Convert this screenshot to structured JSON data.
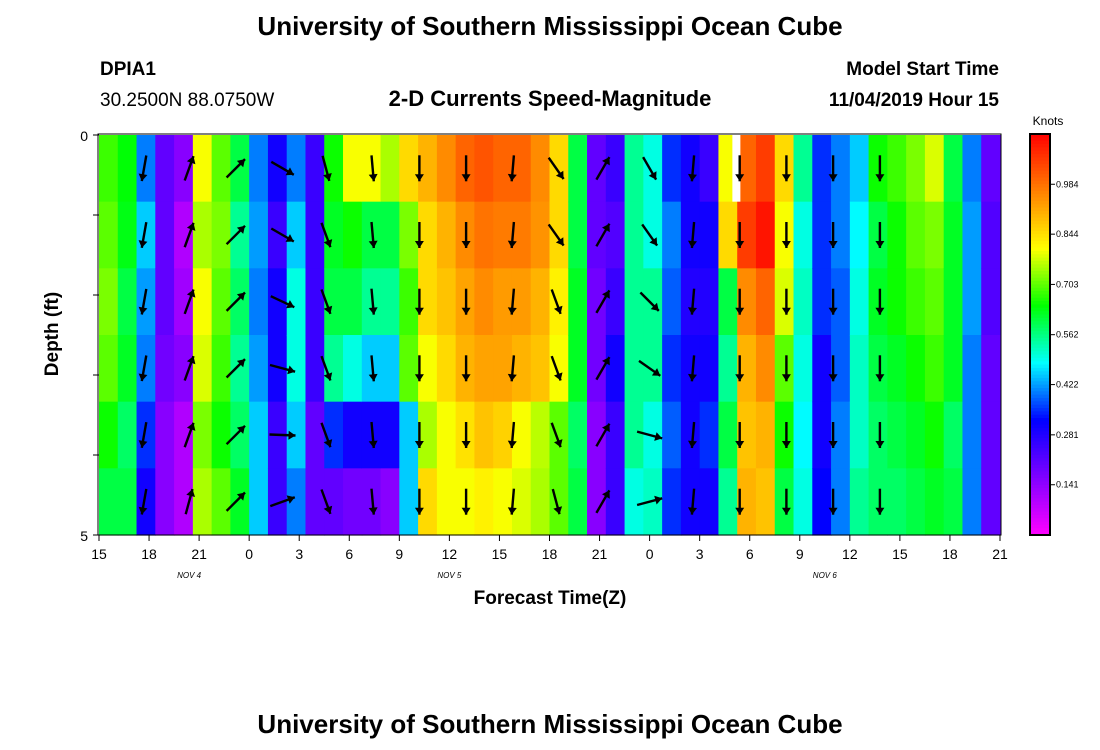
{
  "header": {
    "title": "University of Southern Mississippi Ocean Cube",
    "station_id": "DPIA1",
    "coordinates": "30.2500N 88.0750W",
    "plot_title": "2-D Currents Speed-Magnitude",
    "model_start_label": "Model Start Time",
    "model_start_value": "11/04/2019 Hour 15"
  },
  "footer": {
    "title": "University of Southern Mississippi Ocean Cube"
  },
  "chart_data": {
    "type": "heatmap",
    "xlabel": "Forecast Time(Z)",
    "ylabel": "Depth (ft)",
    "x_tick_labels": [
      "15",
      "18",
      "21",
      "0",
      "3",
      "6",
      "9",
      "12",
      "15",
      "18",
      "21",
      "0",
      "3",
      "6",
      "9",
      "12",
      "15",
      "18",
      "21"
    ],
    "date_labels": [
      {
        "text": "NOV 4",
        "tick_index": 1.8
      },
      {
        "text": "NOV 5",
        "tick_index": 7.0
      },
      {
        "text": "NOV 6",
        "tick_index": 14.5
      }
    ],
    "y_tick_labels": [
      "0",
      "5"
    ],
    "y_range": [
      0,
      5
    ],
    "colorbar": {
      "unit": "Knots",
      "tick_labels": [
        "0.984",
        "0.844",
        "0.703",
        "0.562",
        "0.422",
        "0.281",
        "0.141"
      ],
      "range": [
        0,
        1.125
      ],
      "colors": [
        "#ff00ff",
        "#8000ff",
        "#0000ff",
        "#00ffff",
        "#00ff00",
        "#ffff00",
        "#ff8000",
        "#ff0000"
      ]
    },
    "speed_columns": [
      [
        0.68,
        0.7,
        0.72,
        0.7,
        0.65,
        0.6
      ],
      [
        0.64,
        0.63,
        0.6,
        0.62,
        0.58,
        0.6
      ],
      [
        0.4,
        0.45,
        0.42,
        0.4,
        0.35,
        0.3
      ],
      [
        0.2,
        0.2,
        0.2,
        0.18,
        0.15,
        0.15
      ],
      [
        0.15,
        0.1,
        0.12,
        0.15,
        0.1,
        0.1
      ],
      [
        0.8,
        0.75,
        0.8,
        0.78,
        0.72,
        0.75
      ],
      [
        0.7,
        0.72,
        0.7,
        0.68,
        0.65,
        0.7
      ],
      [
        0.6,
        0.55,
        0.58,
        0.55,
        0.58,
        0.62
      ],
      [
        0.4,
        0.42,
        0.4,
        0.42,
        0.45,
        0.45
      ],
      [
        0.3,
        0.25,
        0.3,
        0.3,
        0.25,
        0.25
      ],
      [
        0.4,
        0.45,
        0.5,
        0.5,
        0.45,
        0.4
      ],
      [
        0.25,
        0.25,
        0.25,
        0.25,
        0.2,
        0.2
      ],
      [
        0.65,
        0.62,
        0.6,
        0.55,
        0.35,
        0.2
      ],
      [
        0.8,
        0.65,
        0.6,
        0.5,
        0.3,
        0.18
      ],
      [
        0.8,
        0.6,
        0.55,
        0.45,
        0.3,
        0.18
      ],
      [
        0.75,
        0.6,
        0.55,
        0.45,
        0.3,
        0.15
      ],
      [
        0.85,
        0.72,
        0.68,
        0.7,
        0.45,
        0.45
      ],
      [
        0.9,
        0.85,
        0.85,
        0.8,
        0.75,
        0.85
      ],
      [
        0.95,
        0.9,
        0.88,
        0.85,
        0.8,
        0.8
      ],
      [
        1.0,
        0.95,
        0.92,
        0.9,
        0.84,
        0.8
      ],
      [
        1.02,
        0.98,
        0.95,
        0.92,
        0.88,
        0.82
      ],
      [
        1.0,
        0.97,
        0.93,
        0.92,
        0.86,
        0.8
      ],
      [
        1.0,
        0.97,
        0.93,
        0.9,
        0.8,
        0.78
      ],
      [
        0.95,
        0.94,
        0.9,
        0.88,
        0.76,
        0.75
      ],
      [
        0.85,
        0.85,
        0.82,
        0.8,
        0.7,
        0.7
      ],
      [
        0.6,
        0.6,
        0.62,
        0.62,
        0.58,
        0.6
      ],
      [
        0.2,
        0.2,
        0.18,
        0.18,
        0.15,
        0.15
      ],
      [
        0.25,
        0.22,
        0.25,
        0.3,
        0.25,
        0.25
      ],
      [
        0.55,
        0.55,
        0.55,
        0.55,
        0.55,
        0.5
      ],
      [
        0.5,
        0.5,
        0.55,
        0.55,
        0.5,
        0.52
      ],
      [
        0.35,
        0.4,
        0.38,
        0.35,
        0.38,
        0.35
      ],
      [
        0.3,
        0.3,
        0.28,
        0.3,
        0.3,
        0.3
      ],
      [
        0.25,
        0.3,
        0.28,
        0.3,
        0.35,
        0.3
      ],
      [
        0.8,
        0.85,
        0.6,
        0.55,
        0.6,
        0.55
      ],
      [
        1.0,
        1.05,
        0.95,
        0.9,
        0.88,
        0.9
      ],
      [
        1.05,
        1.1,
        1.0,
        0.95,
        0.9,
        0.88
      ],
      [
        0.85,
        0.8,
        0.78,
        0.7,
        0.65,
        0.6
      ],
      [
        0.55,
        0.5,
        0.52,
        0.5,
        0.48,
        0.5
      ],
      [
        0.35,
        0.35,
        0.35,
        0.3,
        0.3,
        0.32
      ],
      [
        0.4,
        0.4,
        0.38,
        0.38,
        0.4,
        0.4
      ],
      [
        0.45,
        0.48,
        0.5,
        0.52,
        0.52,
        0.55
      ],
      [
        0.65,
        0.6,
        0.62,
        0.6,
        0.58,
        0.58
      ],
      [
        0.68,
        0.65,
        0.65,
        0.62,
        0.6,
        0.58
      ],
      [
        0.72,
        0.7,
        0.68,
        0.65,
        0.62,
        0.6
      ],
      [
        0.78,
        0.72,
        0.7,
        0.68,
        0.65,
        0.62
      ],
      [
        0.6,
        0.62,
        0.62,
        0.62,
        0.58,
        0.6
      ],
      [
        0.4,
        0.42,
        0.42,
        0.4,
        0.4,
        0.4
      ],
      [
        0.2,
        0.22,
        0.22,
        0.2,
        0.2,
        0.2
      ]
    ],
    "vector_columns": [
      {
        "x_hour": 2.7,
        "dirs": [
          190,
          190,
          190,
          190,
          190,
          190
        ],
        "depth_mode": "mid"
      },
      {
        "x_hour": 5.4,
        "dirs": [
          20,
          20,
          20,
          20,
          20,
          15
        ],
        "depth_mode": "mid"
      },
      {
        "x_hour": 8.2,
        "dirs": [
          45,
          45,
          45,
          45,
          45,
          45
        ],
        "depth_mode": "mid"
      },
      {
        "x_hour": 11.0,
        "dirs": [
          120,
          120,
          115,
          105,
          92,
          70
        ],
        "depth_mode": "mid"
      },
      {
        "x_hour": 13.6,
        "dirs": [
          165,
          160,
          160,
          160,
          160,
          160
        ],
        "depth_mode": "mid"
      },
      {
        "x_hour": 16.4,
        "dirs": [
          175,
          175,
          175,
          175,
          175,
          175
        ],
        "depth_mode": "mid"
      },
      {
        "x_hour": 19.2,
        "dirs": [
          180,
          180,
          180,
          180,
          180,
          180
        ],
        "depth_mode": "mid"
      },
      {
        "x_hour": 22.0,
        "dirs": [
          180,
          180,
          180,
          180,
          180,
          180
        ],
        "depth_mode": "mid"
      },
      {
        "x_hour": 24.8,
        "dirs": [
          185,
          185,
          185,
          185,
          185,
          185
        ],
        "depth_mode": "mid"
      },
      {
        "x_hour": 27.4,
        "dirs": [
          145,
          145,
          160,
          160,
          160,
          165
        ],
        "depth_mode": "mid"
      },
      {
        "x_hour": 30.2,
        "dirs": [
          30,
          30,
          30,
          30,
          30,
          30
        ],
        "depth_mode": "mid"
      },
      {
        "x_hour": 33.0,
        "dirs": [
          150,
          145,
          135,
          125,
          105,
          75
        ],
        "depth_mode": "mid"
      },
      {
        "x_hour": 35.6,
        "dirs": [
          185,
          185,
          185,
          185,
          185,
          185
        ],
        "depth_mode": "mid"
      },
      {
        "x_hour": 38.4,
        "dirs": [
          180,
          180,
          180,
          180,
          180,
          180
        ],
        "depth_mode": "mid"
      },
      {
        "x_hour": 41.2,
        "dirs": [
          180,
          180,
          180,
          180,
          180,
          180
        ],
        "depth_mode": "mid"
      },
      {
        "x_hour": 44.0,
        "dirs": [
          180,
          180,
          180,
          180,
          180,
          180
        ],
        "depth_mode": "mid"
      },
      {
        "x_hour": 46.8,
        "dirs": [
          180,
          180,
          180,
          180,
          180,
          180
        ],
        "depth_mode": "mid"
      }
    ],
    "white_gap": {
      "x_hour": 38.2,
      "depth_row": 0
    }
  }
}
